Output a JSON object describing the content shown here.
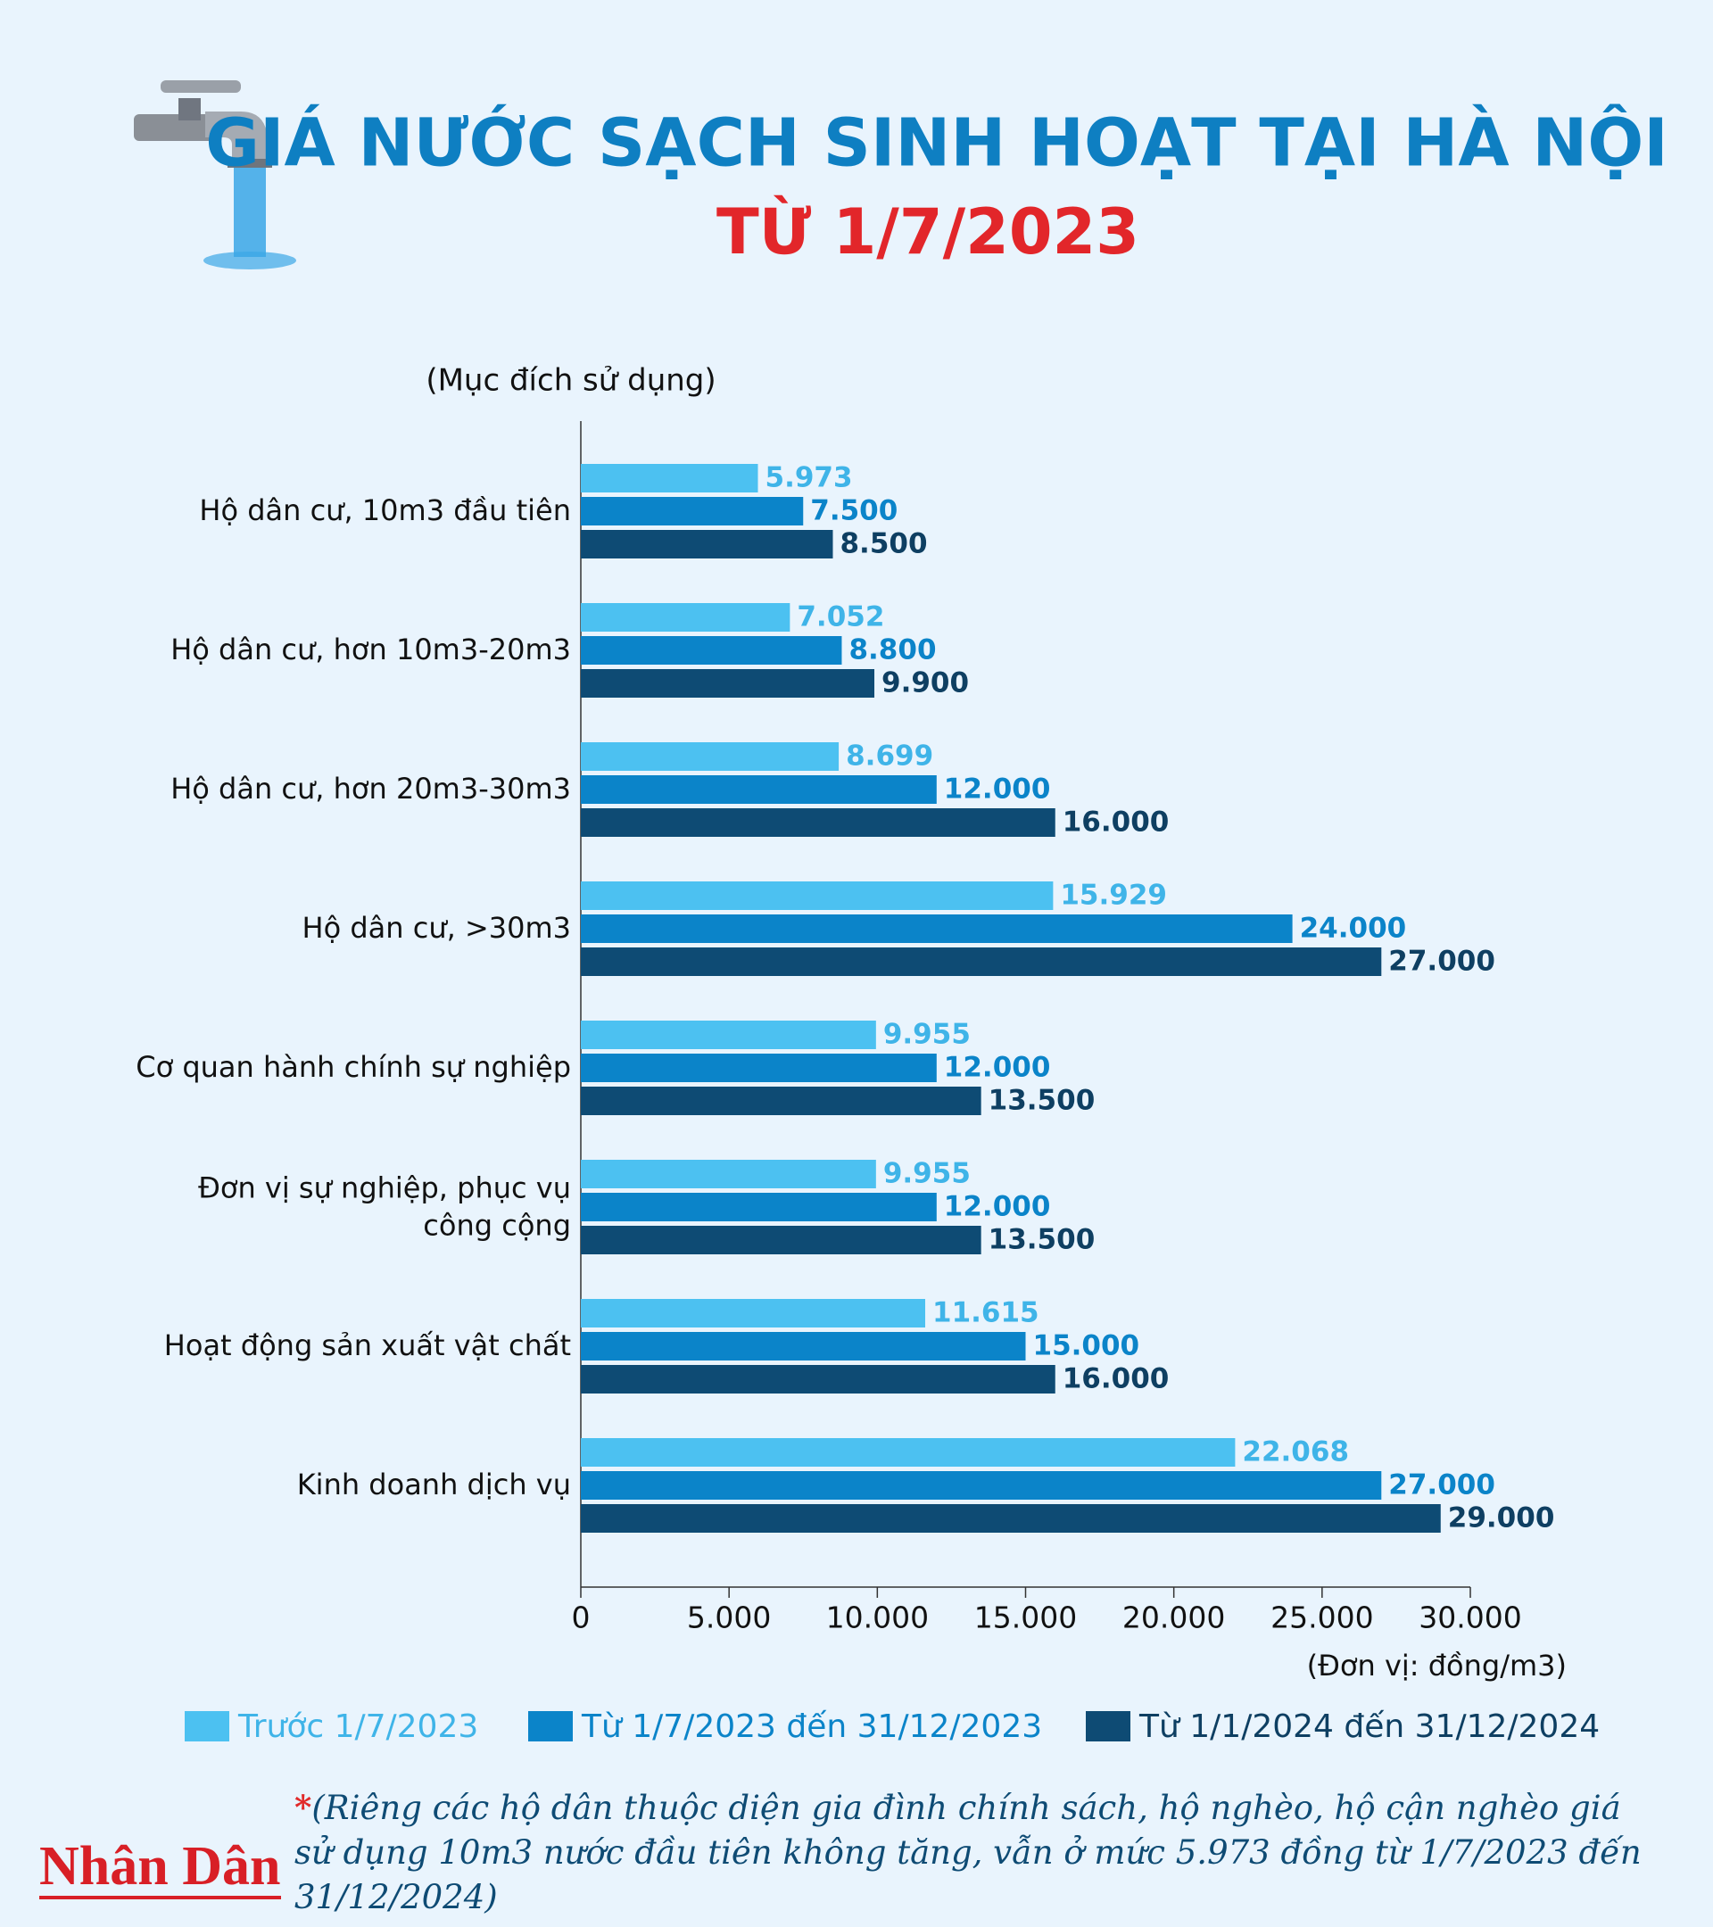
{
  "chart_data": {
    "type": "barh",
    "title": "GIÁ NƯỚC SẠCH SINH HOẠT TẠI HÀ NỘI",
    "subtitle": "TỪ 1/7/2023",
    "y_label": "(Mục đích sử dụng)",
    "x_label": "(Đơn vị: đồng/m3)",
    "categories": [
      "Hộ dân cư, 10m3 đầu tiên",
      "Hộ dân cư, hơn 10m3-20m3",
      "Hộ dân cư, hơn 20m3-30m3",
      "Hộ dân cư, >30m3",
      "Cơ quan hành chính sự nghiệp",
      "Đơn vị sự nghiệp, phục vụ công cộng",
      "Hoạt động sản xuất vật chất",
      "Kinh doanh dịch vụ"
    ],
    "series": [
      {
        "name": "Trước 1/7/2023",
        "color": "#4cc1f1",
        "label_color": "#3fb4e8",
        "values": [
          5973,
          7052,
          8699,
          15929,
          9955,
          9955,
          11615,
          22068
        ],
        "value_labels": [
          "5.973",
          "7.052",
          "8.699",
          "15.929",
          "9.955",
          "9.955",
          "11.615",
          "22.068"
        ]
      },
      {
        "name": "Từ 1/7/2023 đến 31/12/2023",
        "color": "#0b84c9",
        "label_color": "#0b84c9",
        "values": [
          7500,
          8800,
          12000,
          24000,
          12000,
          12000,
          15000,
          27000
        ],
        "value_labels": [
          "7.500",
          "8.800",
          "12.000",
          "24.000",
          "12.000",
          "12.000",
          "15.000",
          "27.000"
        ]
      },
      {
        "name": "Từ 1/1/2024 đến 31/12/2024",
        "color": "#0e4b74",
        "label_color": "#0e3f62",
        "values": [
          8500,
          9900,
          16000,
          27000,
          13500,
          13500,
          16000,
          29000
        ],
        "value_labels": [
          "8.500",
          "9.900",
          "16.000",
          "27.000",
          "13.500",
          "13.500",
          "16.000",
          "29.000"
        ]
      }
    ],
    "xlim": [
      0,
      30000
    ],
    "xticks": [
      0,
      {
        "value": 5000,
        "label": "5.000"
      },
      {
        "value": 10000,
        "label": "10.000"
      },
      {
        "value": 15000,
        "label": "15.000"
      },
      {
        "value": 20000,
        "label": "20.000"
      },
      {
        "value": 25000,
        "label": "25.000"
      },
      {
        "value": 30000,
        "label": "30.000"
      }
    ],
    "footnote_marker": "*",
    "footnote": "(Riêng các hộ dân thuộc diện gia đình chính sách, hộ nghèo, hộ cận nghèo giá sử dụng 10m3 nước đầu tiên không tăng, vẫn ở mức 5.973 đồng từ 1/7/2023 đến 31/12/2024)",
    "source": "Nhân Dân"
  }
}
